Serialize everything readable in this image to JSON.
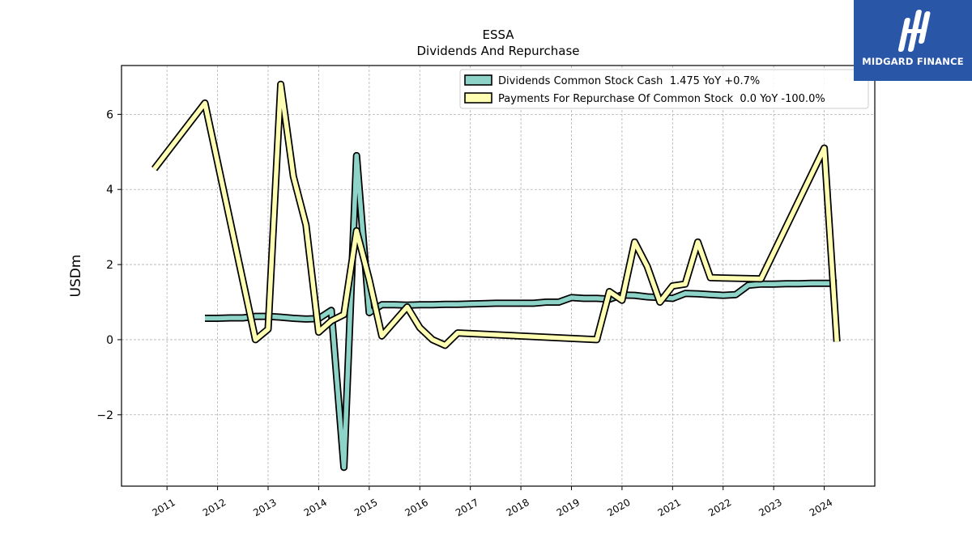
{
  "chart_data": {
    "type": "line",
    "title": "ESSA",
    "subtitle": "Dividends And Repurchase",
    "xlabel": "",
    "ylabel": "USDm",
    "xlim": [
      2010.1,
      2025.0
    ],
    "ylim": [
      -3.9,
      7.3
    ],
    "x_ticks": [
      "2011",
      "2012",
      "2013",
      "2014",
      "2015",
      "2016",
      "2017",
      "2018",
      "2019",
      "2020",
      "2021",
      "2022",
      "2023",
      "2024"
    ],
    "y_ticks": [
      -2,
      0,
      2,
      4,
      6
    ],
    "y_tick_labels": [
      "−2",
      "0",
      "2",
      "4",
      "6"
    ],
    "grid": true,
    "legend_position": "top-right",
    "series": [
      {
        "name": "Dividends Common Stock Cash  1.475 YoY +0.7%",
        "color": "#8dd3c7",
        "points": [
          [
            2011.75,
            0.57
          ],
          [
            2012.0,
            0.57
          ],
          [
            2012.25,
            0.58
          ],
          [
            2012.5,
            0.58
          ],
          [
            2012.75,
            0.62
          ],
          [
            2013.0,
            0.62
          ],
          [
            2013.25,
            0.6
          ],
          [
            2013.5,
            0.57
          ],
          [
            2013.75,
            0.55
          ],
          [
            2014.0,
            0.56
          ],
          [
            2014.25,
            0.78
          ],
          [
            2014.5,
            -3.4
          ],
          [
            2014.75,
            4.9
          ],
          [
            2015.0,
            0.72
          ],
          [
            2015.25,
            0.93
          ],
          [
            2015.5,
            0.93
          ],
          [
            2015.75,
            0.92
          ],
          [
            2016.0,
            0.93
          ],
          [
            2016.25,
            0.93
          ],
          [
            2016.5,
            0.94
          ],
          [
            2016.75,
            0.94
          ],
          [
            2017.0,
            0.95
          ],
          [
            2017.25,
            0.96
          ],
          [
            2017.5,
            0.97
          ],
          [
            2017.75,
            0.97
          ],
          [
            2018.0,
            0.97
          ],
          [
            2018.25,
            0.97
          ],
          [
            2018.5,
            1.0
          ],
          [
            2018.75,
            1.0
          ],
          [
            2019.0,
            1.12
          ],
          [
            2019.25,
            1.1
          ],
          [
            2019.5,
            1.1
          ],
          [
            2019.75,
            1.08
          ],
          [
            2020.0,
            1.19
          ],
          [
            2020.25,
            1.18
          ],
          [
            2020.5,
            1.14
          ],
          [
            2020.75,
            1.12
          ],
          [
            2021.0,
            1.1
          ],
          [
            2021.25,
            1.23
          ],
          [
            2021.5,
            1.22
          ],
          [
            2021.75,
            1.2
          ],
          [
            2022.0,
            1.18
          ],
          [
            2022.25,
            1.2
          ],
          [
            2022.5,
            1.45
          ],
          [
            2022.75,
            1.48
          ],
          [
            2023.0,
            1.48
          ],
          [
            2023.25,
            1.49
          ],
          [
            2023.5,
            1.49
          ],
          [
            2023.75,
            1.5
          ],
          [
            2024.0,
            1.5
          ],
          [
            2024.25,
            1.5
          ]
        ]
      },
      {
        "name": "Payments For Repurchase Of Common Stock  0.0 YoY -100.0%",
        "color": "#ffffb3",
        "points": [
          [
            2010.75,
            4.55
          ],
          [
            2011.75,
            6.3
          ],
          [
            2012.75,
            0.0
          ],
          [
            2013.0,
            0.28
          ],
          [
            2013.25,
            6.8
          ],
          [
            2013.5,
            4.35
          ],
          [
            2013.75,
            3.05
          ],
          [
            2014.0,
            0.2
          ],
          [
            2014.25,
            0.5
          ],
          [
            2014.5,
            0.67
          ],
          [
            2014.75,
            2.9
          ],
          [
            2015.0,
            1.6
          ],
          [
            2015.25,
            0.1
          ],
          [
            2015.75,
            0.87
          ],
          [
            2016.0,
            0.32
          ],
          [
            2016.25,
            0.0
          ],
          [
            2016.5,
            -0.15
          ],
          [
            2016.75,
            0.18
          ],
          [
            2019.5,
            0.0
          ],
          [
            2019.75,
            1.28
          ],
          [
            2020.0,
            1.05
          ],
          [
            2020.25,
            2.6
          ],
          [
            2020.5,
            1.95
          ],
          [
            2020.75,
            1.0
          ],
          [
            2021.0,
            1.43
          ],
          [
            2021.25,
            1.48
          ],
          [
            2021.5,
            2.6
          ],
          [
            2021.75,
            1.65
          ],
          [
            2022.75,
            1.62
          ],
          [
            2024.0,
            5.1
          ],
          [
            2024.25,
            -0.05
          ]
        ]
      }
    ]
  },
  "logo": {
    "text": "MIDGARD FINANCE"
  }
}
